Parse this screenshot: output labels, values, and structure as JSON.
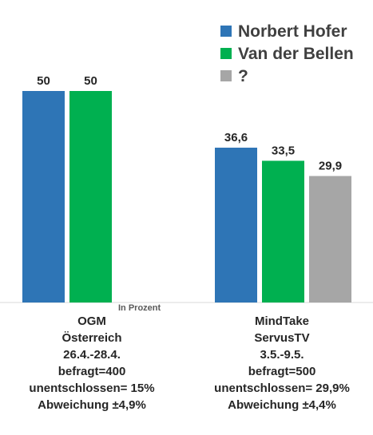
{
  "chart_data": {
    "type": "bar",
    "categories": [
      [
        "OGM",
        "Österreich",
        "26.4.-28.4.",
        "befragt=400",
        "unentschlossen= 15%",
        "Abweichung ±4,9%"
      ],
      [
        "MindTake",
        "ServusTV",
        "3.5.-9.5.",
        "befragt=500",
        "unentschlossen= 29,9%",
        "Abweichung ±4,4%"
      ]
    ],
    "series": [
      {
        "name": "Norbert Hofer",
        "color": "#2e75b6",
        "values": [
          50,
          36.6
        ],
        "labels": [
          "50",
          "36,6"
        ]
      },
      {
        "name": "Van der Bellen",
        "color": "#00b050",
        "values": [
          50,
          33.5
        ],
        "labels": [
          "50",
          "33,5"
        ]
      },
      {
        "name": "?",
        "color": "#a6a6a6",
        "values": [
          null,
          29.9
        ],
        "labels": [
          "",
          "29,9"
        ]
      }
    ],
    "note": "In Prozent",
    "ylim": [
      0,
      50
    ],
    "grid": false,
    "legend_position": "top-right"
  }
}
